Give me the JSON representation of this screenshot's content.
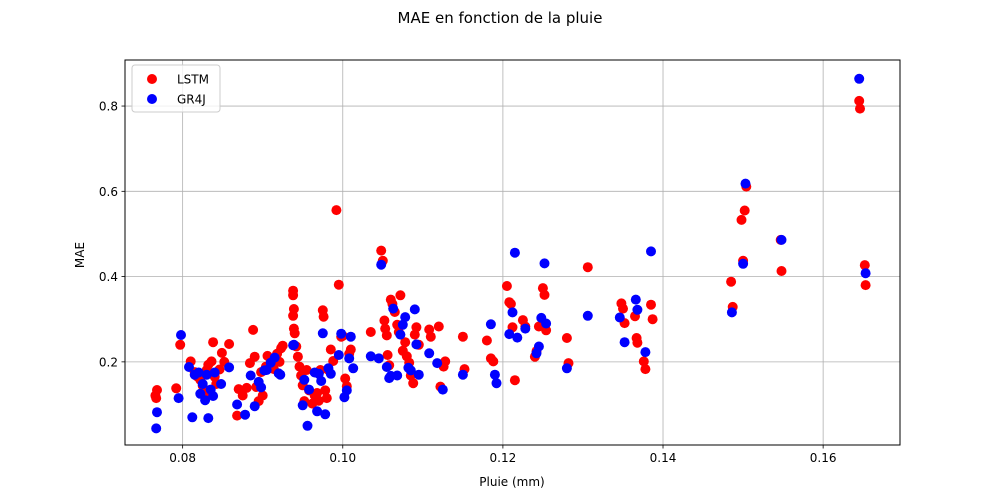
{
  "chart_data": {
    "type": "scatter",
    "title": "MAE en fonction de la pluie",
    "xlabel": "Pluie (mm)",
    "ylabel": "MAE",
    "xlim": [
      0.0728,
      0.1696
    ],
    "ylim": [
      0.005,
      0.908
    ],
    "xticks": [
      0.08,
      0.1,
      0.12,
      0.14,
      0.16
    ],
    "xtick_labels": [
      "0.08",
      "0.10",
      "0.12",
      "0.14",
      "0.16"
    ],
    "yticks": [
      0.2,
      0.4,
      0.6,
      0.8
    ],
    "ytick_labels": [
      "0.2",
      "0.4",
      "0.6",
      "0.8"
    ],
    "grid": true,
    "legend_position": "top-left",
    "series": [
      {
        "name": "LSTM",
        "color": "#ff0000",
        "points": [
          [
            0.0766,
            0.121
          ],
          [
            0.0768,
            0.134
          ],
          [
            0.0767,
            0.115
          ],
          [
            0.0792,
            0.138
          ],
          [
            0.0797,
            0.24
          ],
          [
            0.081,
            0.201
          ],
          [
            0.0815,
            0.176
          ],
          [
            0.0818,
            0.166
          ],
          [
            0.0822,
            0.158
          ],
          [
            0.0825,
            0.144
          ],
          [
            0.0828,
            0.128
          ],
          [
            0.083,
            0.181
          ],
          [
            0.0832,
            0.193
          ],
          [
            0.0836,
            0.201
          ],
          [
            0.0838,
            0.246
          ],
          [
            0.084,
            0.165
          ],
          [
            0.0842,
            0.148
          ],
          [
            0.0846,
            0.182
          ],
          [
            0.0849,
            0.221
          ],
          [
            0.0852,
            0.2
          ],
          [
            0.0858,
            0.242
          ],
          [
            0.0868,
            0.074
          ],
          [
            0.087,
            0.136
          ],
          [
            0.0875,
            0.121
          ],
          [
            0.088,
            0.139
          ],
          [
            0.0884,
            0.197
          ],
          [
            0.0888,
            0.275
          ],
          [
            0.089,
            0.212
          ],
          [
            0.0892,
            0.141
          ],
          [
            0.0895,
            0.108
          ],
          [
            0.0898,
            0.176
          ],
          [
            0.09,
            0.121
          ],
          [
            0.0904,
            0.189
          ],
          [
            0.0906,
            0.214
          ],
          [
            0.091,
            0.2
          ],
          [
            0.0914,
            0.183
          ],
          [
            0.0918,
            0.219
          ],
          [
            0.0921,
            0.2
          ],
          [
            0.0923,
            0.232
          ],
          [
            0.0925,
            0.238
          ],
          [
            0.0938,
            0.367
          ],
          [
            0.0938,
            0.356
          ],
          [
            0.0939,
            0.324
          ],
          [
            0.0938,
            0.308
          ],
          [
            0.0939,
            0.278
          ],
          [
            0.094,
            0.267
          ],
          [
            0.0942,
            0.236
          ],
          [
            0.0944,
            0.212
          ],
          [
            0.0946,
            0.189
          ],
          [
            0.0948,
            0.168
          ],
          [
            0.095,
            0.145
          ],
          [
            0.0952,
            0.108
          ],
          [
            0.0955,
            0.181
          ],
          [
            0.0958,
            0.133
          ],
          [
            0.0962,
            0.102
          ],
          [
            0.0965,
            0.121
          ],
          [
            0.0968,
            0.127
          ],
          [
            0.097,
            0.109
          ],
          [
            0.0972,
            0.181
          ],
          [
            0.0975,
            0.321
          ],
          [
            0.0976,
            0.306
          ],
          [
            0.0978,
            0.133
          ],
          [
            0.098,
            0.115
          ],
          [
            0.0982,
            0.181
          ],
          [
            0.0985,
            0.229
          ],
          [
            0.0988,
            0.202
          ],
          [
            0.0992,
            0.556
          ],
          [
            0.0995,
            0.381
          ],
          [
            0.0998,
            0.259
          ],
          [
            0.1,
            0.261
          ],
          [
            0.1003,
            0.161
          ],
          [
            0.1005,
            0.143
          ],
          [
            0.1008,
            0.219
          ],
          [
            0.101,
            0.229
          ],
          [
            0.1035,
            0.27
          ],
          [
            0.1048,
            0.461
          ],
          [
            0.105,
            0.437
          ],
          [
            0.1052,
            0.297
          ],
          [
            0.1053,
            0.278
          ],
          [
            0.1055,
            0.262
          ],
          [
            0.1056,
            0.216
          ],
          [
            0.1058,
            0.192
          ],
          [
            0.106,
            0.346
          ],
          [
            0.1062,
            0.336
          ],
          [
            0.1065,
            0.317
          ],
          [
            0.1068,
            0.287
          ],
          [
            0.107,
            0.27
          ],
          [
            0.1072,
            0.356
          ],
          [
            0.1075,
            0.226
          ],
          [
            0.1078,
            0.246
          ],
          [
            0.108,
            0.213
          ],
          [
            0.1083,
            0.198
          ],
          [
            0.1085,
            0.168
          ],
          [
            0.1088,
            0.15
          ],
          [
            0.109,
            0.264
          ],
          [
            0.1092,
            0.281
          ],
          [
            0.1095,
            0.24
          ],
          [
            0.1108,
            0.276
          ],
          [
            0.111,
            0.259
          ],
          [
            0.112,
            0.283
          ],
          [
            0.1122,
            0.142
          ],
          [
            0.1126,
            0.189
          ],
          [
            0.1128,
            0.201
          ],
          [
            0.115,
            0.259
          ],
          [
            0.1152,
            0.183
          ],
          [
            0.118,
            0.25
          ],
          [
            0.1185,
            0.208
          ],
          [
            0.1188,
            0.201
          ],
          [
            0.1205,
            0.378
          ],
          [
            0.1208,
            0.34
          ],
          [
            0.121,
            0.336
          ],
          [
            0.1212,
            0.281
          ],
          [
            0.1215,
            0.157
          ],
          [
            0.1225,
            0.298
          ],
          [
            0.1228,
            0.283
          ],
          [
            0.124,
            0.212
          ],
          [
            0.1242,
            0.225
          ],
          [
            0.1245,
            0.283
          ],
          [
            0.125,
            0.373
          ],
          [
            0.1252,
            0.357
          ],
          [
            0.1254,
            0.274
          ],
          [
            0.128,
            0.256
          ],
          [
            0.1282,
            0.197
          ],
          [
            0.1306,
            0.422
          ],
          [
            0.1348,
            0.337
          ],
          [
            0.135,
            0.325
          ],
          [
            0.1352,
            0.291
          ],
          [
            0.1365,
            0.307
          ],
          [
            0.1367,
            0.256
          ],
          [
            0.1368,
            0.245
          ],
          [
            0.1376,
            0.201
          ],
          [
            0.1378,
            0.183
          ],
          [
            0.1385,
            0.334
          ],
          [
            0.1387,
            0.3
          ],
          [
            0.1485,
            0.388
          ],
          [
            0.1487,
            0.329
          ],
          [
            0.1498,
            0.533
          ],
          [
            0.15,
            0.437
          ],
          [
            0.1502,
            0.555
          ],
          [
            0.1504,
            0.611
          ],
          [
            0.1547,
            0.486
          ],
          [
            0.1548,
            0.413
          ],
          [
            0.1645,
            0.812
          ],
          [
            0.1646,
            0.794
          ],
          [
            0.1652,
            0.427
          ],
          [
            0.1653,
            0.38
          ]
        ]
      },
      {
        "name": "GR4J",
        "color": "#0000ff",
        "points": [
          [
            0.0767,
            0.044
          ],
          [
            0.0768,
            0.082
          ],
          [
            0.0795,
            0.115
          ],
          [
            0.0798,
            0.263
          ],
          [
            0.0808,
            0.188
          ],
          [
            0.0812,
            0.07
          ],
          [
            0.0815,
            0.17
          ],
          [
            0.082,
            0.175
          ],
          [
            0.0822,
            0.125
          ],
          [
            0.0825,
            0.148
          ],
          [
            0.0828,
            0.11
          ],
          [
            0.083,
            0.17
          ],
          [
            0.0832,
            0.068
          ],
          [
            0.0835,
            0.135
          ],
          [
            0.0838,
            0.12
          ],
          [
            0.084,
            0.175
          ],
          [
            0.0848,
            0.148
          ],
          [
            0.0858,
            0.187
          ],
          [
            0.0868,
            0.1
          ],
          [
            0.0878,
            0.076
          ],
          [
            0.0885,
            0.168
          ],
          [
            0.089,
            0.096
          ],
          [
            0.0895,
            0.153
          ],
          [
            0.0898,
            0.14
          ],
          [
            0.0902,
            0.18
          ],
          [
            0.0905,
            0.181
          ],
          [
            0.091,
            0.198
          ],
          [
            0.0915,
            0.21
          ],
          [
            0.092,
            0.173
          ],
          [
            0.0922,
            0.17
          ],
          [
            0.0938,
            0.239
          ],
          [
            0.0939,
            0.24
          ],
          [
            0.095,
            0.098
          ],
          [
            0.0952,
            0.158
          ],
          [
            0.0956,
            0.05
          ],
          [
            0.0958,
            0.135
          ],
          [
            0.0965,
            0.175
          ],
          [
            0.0968,
            0.084
          ],
          [
            0.097,
            0.172
          ],
          [
            0.0973,
            0.155
          ],
          [
            0.0975,
            0.267
          ],
          [
            0.0978,
            0.077
          ],
          [
            0.0982,
            0.185
          ],
          [
            0.0985,
            0.172
          ],
          [
            0.0995,
            0.216
          ],
          [
            0.0998,
            0.266
          ],
          [
            0.1002,
            0.117
          ],
          [
            0.1005,
            0.133
          ],
          [
            0.1008,
            0.208
          ],
          [
            0.101,
            0.259
          ],
          [
            0.1013,
            0.185
          ],
          [
            0.1035,
            0.213
          ],
          [
            0.1045,
            0.208
          ],
          [
            0.1048,
            0.428
          ],
          [
            0.1055,
            0.188
          ],
          [
            0.1058,
            0.162
          ],
          [
            0.106,
            0.167
          ],
          [
            0.1063,
            0.325
          ],
          [
            0.1068,
            0.168
          ],
          [
            0.1072,
            0.264
          ],
          [
            0.1075,
            0.287
          ],
          [
            0.1078,
            0.305
          ],
          [
            0.1082,
            0.186
          ],
          [
            0.1085,
            0.18
          ],
          [
            0.109,
            0.323
          ],
          [
            0.1092,
            0.241
          ],
          [
            0.1095,
            0.17
          ],
          [
            0.1108,
            0.22
          ],
          [
            0.1118,
            0.197
          ],
          [
            0.1125,
            0.135
          ],
          [
            0.115,
            0.17
          ],
          [
            0.1185,
            0.288
          ],
          [
            0.119,
            0.17
          ],
          [
            0.1192,
            0.15
          ],
          [
            0.1208,
            0.265
          ],
          [
            0.1212,
            0.316
          ],
          [
            0.1215,
            0.456
          ],
          [
            0.1218,
            0.257
          ],
          [
            0.1228,
            0.278
          ],
          [
            0.1242,
            0.22
          ],
          [
            0.1245,
            0.236
          ],
          [
            0.1248,
            0.303
          ],
          [
            0.1252,
            0.431
          ],
          [
            0.1254,
            0.29
          ],
          [
            0.128,
            0.185
          ],
          [
            0.1306,
            0.308
          ],
          [
            0.1346,
            0.304
          ],
          [
            0.1352,
            0.246
          ],
          [
            0.1366,
            0.346
          ],
          [
            0.1368,
            0.322
          ],
          [
            0.1378,
            0.223
          ],
          [
            0.1385,
            0.459
          ],
          [
            0.1486,
            0.316
          ],
          [
            0.15,
            0.43
          ],
          [
            0.1503,
            0.618
          ],
          [
            0.1548,
            0.486
          ],
          [
            0.1645,
            0.864
          ],
          [
            0.1653,
            0.408
          ]
        ]
      }
    ]
  }
}
